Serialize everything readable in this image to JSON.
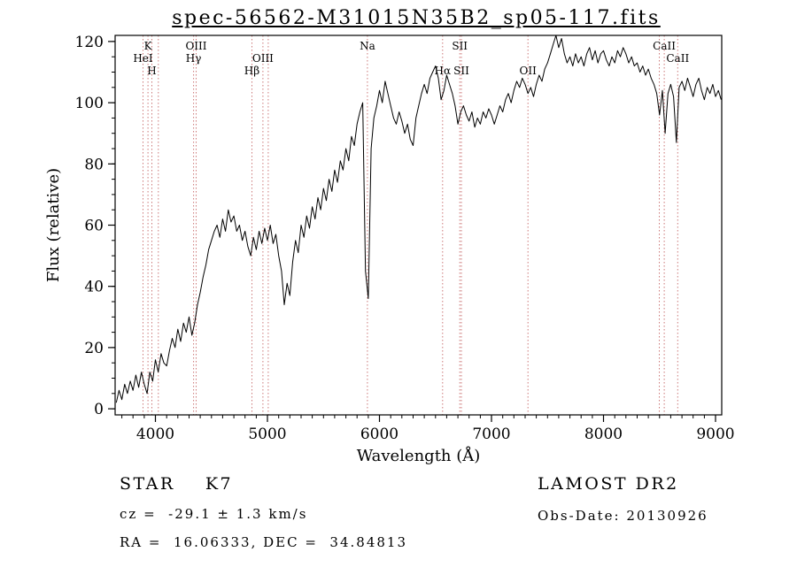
{
  "annotations": {
    "class_line": "STAR    K7",
    "survey": "LAMOST DR2",
    "cz_line": "cz =  -29.1 ± 1.3 km/s",
    "obs_date": "Obs-Date: 20130926",
    "radec_line": "RA =  16.06333, DEC =  34.84813"
  },
  "chart_data": {
    "type": "line",
    "title": "spec-56562-M31015N35B2_sp05-117.fits",
    "xlabel": "Wavelength (Å)",
    "ylabel": "Flux (relative)",
    "xlim": [
      3640,
      9055
    ],
    "ylim": [
      -2,
      122
    ],
    "x_ticks": [
      4000,
      5000,
      6000,
      7000,
      8000,
      9000
    ],
    "y_ticks": [
      0,
      20,
      40,
      60,
      80,
      100,
      120
    ],
    "x_minor_step": 100,
    "y_minor_step": 5,
    "grid": false,
    "legend": false,
    "line_color": "#000000",
    "marker_line_color": "#cc7878",
    "spectral_lines": [
      {
        "wavelength": 3889,
        "label": "HeI",
        "row": 2
      },
      {
        "wavelength": 3933,
        "label": "K",
        "row": 1
      },
      {
        "wavelength": 3968,
        "label": "H",
        "row": 3
      },
      {
        "wavelength": 4026,
        "label": "",
        "row": 0
      },
      {
        "wavelength": 4340,
        "label": "Hγ",
        "row": 2
      },
      {
        "wavelength": 4363,
        "label": "OIII",
        "row": 1
      },
      {
        "wavelength": 4861,
        "label": "Hβ",
        "row": 3
      },
      {
        "wavelength": 4959,
        "label": "OIII",
        "row": 2
      },
      {
        "wavelength": 5007,
        "label": "",
        "row": 0
      },
      {
        "wavelength": 5892,
        "label": "Na",
        "row": 1
      },
      {
        "wavelength": 6563,
        "label": "Hα",
        "row": 3
      },
      {
        "wavelength": 6717,
        "label": "SII",
        "row": 1
      },
      {
        "wavelength": 6731,
        "label": "SII",
        "row": 3
      },
      {
        "wavelength": 7325,
        "label": "OII",
        "row": 3
      },
      {
        "wavelength": 8498,
        "label": "",
        "row": 0
      },
      {
        "wavelength": 8542,
        "label": "CaII",
        "row": 1
      },
      {
        "wavelength": 8662,
        "label": "CaII",
        "row": 2
      }
    ],
    "series": {
      "name": "spectrum",
      "x_start": 3650,
      "x_step": 25,
      "flux": [
        2,
        6,
        3,
        8,
        5,
        9,
        6,
        11,
        7,
        12,
        8,
        5,
        12,
        9,
        16,
        12,
        18,
        15,
        14,
        19,
        23,
        20,
        26,
        22,
        28,
        25,
        30,
        24,
        28,
        34,
        38,
        43,
        47,
        52,
        55,
        58,
        60,
        56,
        62,
        58,
        65,
        61,
        63,
        58,
        60,
        55,
        58,
        53,
        50,
        56,
        52,
        58,
        54,
        59,
        55,
        60,
        54,
        57,
        50,
        45,
        34,
        41,
        37,
        48,
        55,
        51,
        60,
        56,
        63,
        59,
        66,
        62,
        69,
        65,
        72,
        68,
        75,
        71,
        78,
        74,
        81,
        78,
        85,
        81,
        89,
        86,
        93,
        97,
        100,
        45,
        36,
        85,
        95,
        99,
        104,
        100,
        107,
        103,
        99,
        95,
        93,
        97,
        94,
        90,
        93,
        88,
        86,
        95,
        99,
        103,
        106,
        103,
        108,
        110,
        112,
        108,
        101,
        104,
        109,
        106,
        103,
        99,
        93,
        97,
        99,
        96,
        94,
        97,
        92,
        95,
        93,
        97,
        95,
        98,
        96,
        93,
        96,
        99,
        97,
        101,
        103,
        100,
        104,
        107,
        105,
        108,
        106,
        103,
        105,
        102,
        106,
        109,
        107,
        111,
        113,
        116,
        119,
        122,
        118,
        121,
        116,
        113,
        115,
        112,
        116,
        113,
        115,
        112,
        116,
        118,
        114,
        117,
        113,
        116,
        117,
        114,
        112,
        115,
        113,
        117,
        115,
        118,
        116,
        113,
        115,
        112,
        113,
        110,
        112,
        109,
        111,
        108,
        106,
        103,
        96,
        104,
        90,
        103,
        106,
        102,
        87,
        105,
        107,
        104,
        108,
        105,
        102,
        106,
        108,
        104,
        101,
        105,
        103,
        106,
        102,
        104,
        101
      ]
    }
  }
}
